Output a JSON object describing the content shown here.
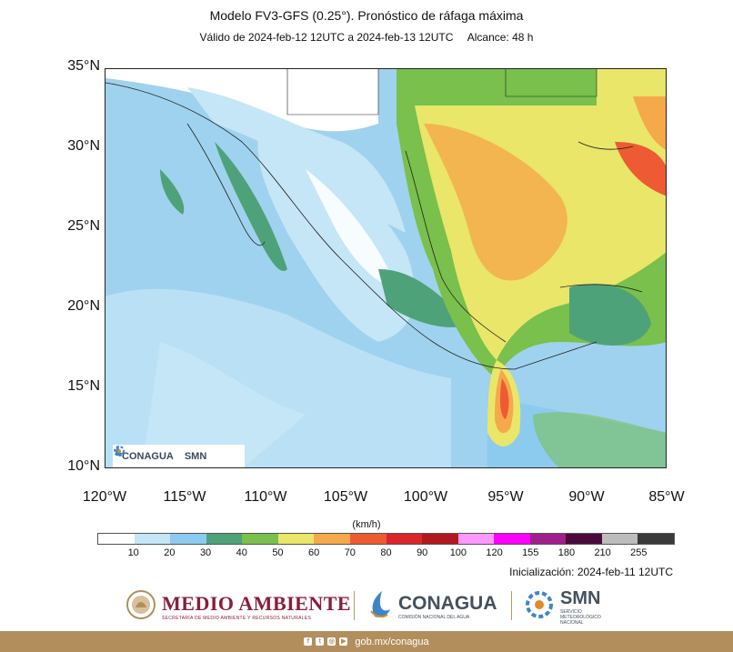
{
  "header": {
    "title": "Modelo FV3-GFS (0.25°). Pronóstico de ráfaga máxima",
    "validity": "Válido de 2024-feb-12 12UTC a 2024-feb-13 12UTC",
    "range": "Alcance: 48 h"
  },
  "map": {
    "lat_labels": [
      "35°N",
      "30°N",
      "25°N",
      "20°N",
      "15°N",
      "10°N"
    ],
    "lon_labels": [
      "120°W",
      "115°W",
      "110°W",
      "105°W",
      "100°W",
      "95°W",
      "90°W",
      "85°W"
    ],
    "lat_range": [
      10,
      35
    ],
    "lon_range": [
      -120,
      -85
    ],
    "inset_logo_conagua": "CONAGUA",
    "inset_logo_smn": "SMN"
  },
  "colorbar": {
    "unit": "(km/h)",
    "tick_labels": [
      "10",
      "20",
      "30",
      "40",
      "50",
      "60",
      "70",
      "80",
      "90",
      "100",
      "120",
      "155",
      "180",
      "210",
      "255"
    ],
    "colors": [
      "#ffffff",
      "#c5e6f7",
      "#8ccbee",
      "#4ea27a",
      "#79c04c",
      "#e9e66a",
      "#f5a94a",
      "#ee5a33",
      "#d9262a",
      "#b2181d",
      "#ff99ff",
      "#ff00ff",
      "#a01e8c",
      "#4b0a3c",
      "#bdbdbd",
      "#3a3a3a"
    ]
  },
  "initialization": "Inicialización: 2024-feb-11 12UTC",
  "footer": {
    "medio_ambiente_title": "MEDIO AMBIENTE",
    "medio_ambiente_sub": "SECRETARÍA DE MEDIO AMBIENTE Y RECURSOS NATURALES",
    "conagua_title": "CONAGUA",
    "conagua_sub": "COMISIÓN NACIONAL DEL AGUA",
    "smn_title": "SMN",
    "smn_sub_1": "SERVICIO",
    "smn_sub_2": "METEOROLÓGICO",
    "smn_sub_3": "NACIONAL",
    "website": "gob.mx/conagua",
    "brand_color": "#b38e5d",
    "accent_color": "#8a1e3a"
  }
}
